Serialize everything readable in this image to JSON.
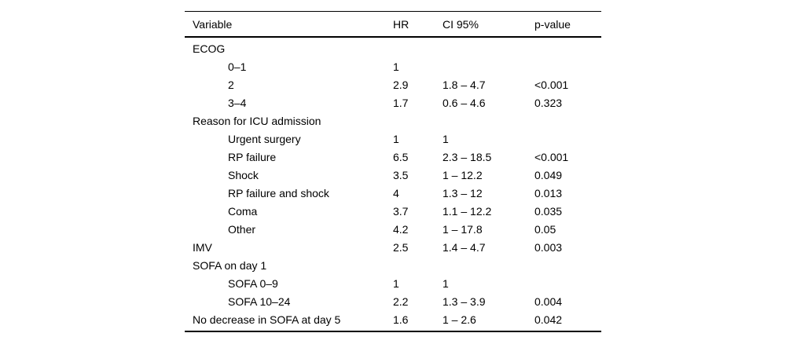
{
  "table": {
    "columns": [
      "Variable",
      "HR",
      "CI 95%",
      "p-value"
    ],
    "rows": [
      {
        "variable": "ECOG",
        "indent": 0,
        "hr": "",
        "ci": "",
        "p": ""
      },
      {
        "variable": "0–1",
        "indent": 1,
        "hr": "1",
        "ci": "",
        "p": ""
      },
      {
        "variable": "2",
        "indent": 1,
        "hr": "2.9",
        "ci": "1.8 – 4.7",
        "p": "<0.001"
      },
      {
        "variable": "3–4",
        "indent": 1,
        "hr": "1.7",
        "ci": "0.6 – 4.6",
        "p": "0.323"
      },
      {
        "variable": "Reason for ICU admission",
        "indent": 0,
        "hr": "",
        "ci": "",
        "p": ""
      },
      {
        "variable": "Urgent surgery",
        "indent": 1,
        "hr": "1",
        "ci": "1",
        "p": ""
      },
      {
        "variable": "RP failure",
        "indent": 1,
        "hr": "6.5",
        "ci": "2.3 – 18.5",
        "p": "<0.001"
      },
      {
        "variable": "Shock",
        "indent": 1,
        "hr": "3.5",
        "ci": "1 – 12.2",
        "p": "0.049"
      },
      {
        "variable": "RP failure and shock",
        "indent": 1,
        "hr": "4",
        "ci": "1.3 – 12",
        "p": "0.013"
      },
      {
        "variable": "Coma",
        "indent": 1,
        "hr": "3.7",
        "ci": "1.1 – 12.2",
        "p": "0.035"
      },
      {
        "variable": "Other",
        "indent": 1,
        "hr": "4.2",
        "ci": "1 – 17.8",
        "p": "0.05"
      },
      {
        "variable": "IMV",
        "indent": 0,
        "hr": "2.5",
        "ci": "1.4 – 4.7",
        "p": "0.003"
      },
      {
        "variable": "SOFA on day 1",
        "indent": 0,
        "hr": "",
        "ci": "",
        "p": ""
      },
      {
        "variable": "SOFA 0–9",
        "indent": 1,
        "hr": "1",
        "ci": "1",
        "p": ""
      },
      {
        "variable": "SOFA 10–24",
        "indent": 1,
        "hr": "2.2",
        "ci": "1.3 – 3.9",
        "p": "0.004"
      },
      {
        "variable": "No decrease in SOFA at day 5",
        "indent": 0,
        "hr": "1.6",
        "ci": "1 – 2.6",
        "p": "0.042"
      }
    ]
  }
}
